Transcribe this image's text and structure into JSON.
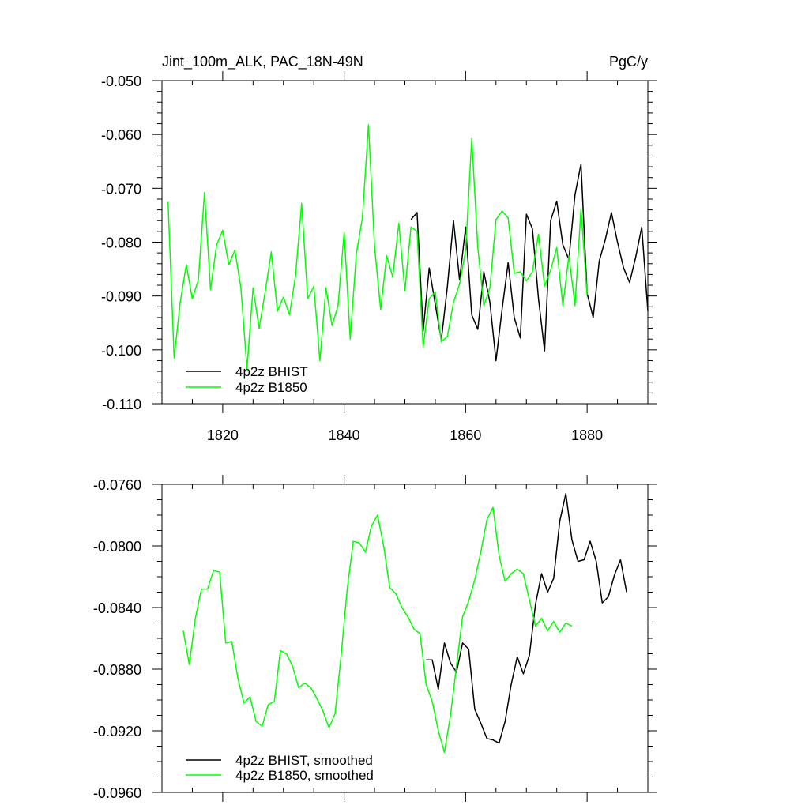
{
  "colors": {
    "bhist": "#000000",
    "b1850": "#00ff00"
  },
  "chart_data": [
    {
      "type": "line",
      "title": "Jint_100m_ALK, PAC_18N-49N",
      "units": "PgC/y",
      "xlim": [
        1810,
        1890
      ],
      "ylim": [
        -0.11,
        -0.05
      ],
      "xticks": [
        1820,
        1840,
        1860,
        1880
      ],
      "xtick_labels": [
        "1820",
        "1840",
        "1860",
        "1880"
      ],
      "yticks": [
        -0.05,
        -0.06,
        -0.07,
        -0.08,
        -0.09,
        -0.1,
        -0.11
      ],
      "ytick_labels": [
        "-0.050",
        "-0.060",
        "-0.070",
        "-0.080",
        "-0.090",
        "-0.100",
        "-0.110"
      ],
      "legend": [
        "4p2z BHIST",
        "4p2z B1850"
      ],
      "series": [
        {
          "name": "4p2z BHIST",
          "color": "#000000",
          "x_start": 1851,
          "values": [
            -0.0758,
            -0.0745,
            -0.0965,
            -0.0848,
            -0.0915,
            -0.0982,
            -0.0882,
            -0.076,
            -0.087,
            -0.0772,
            -0.0935,
            -0.0962,
            -0.0855,
            -0.0912,
            -0.102,
            -0.0925,
            -0.0838,
            -0.094,
            -0.0978,
            -0.0748,
            -0.0775,
            -0.0905,
            -0.1002,
            -0.076,
            -0.0724,
            -0.0805,
            -0.0832,
            -0.0712,
            -0.0655,
            -0.0895,
            -0.094,
            -0.0835,
            -0.0795,
            -0.0745,
            -0.08,
            -0.0848,
            -0.0875,
            -0.0828,
            -0.0772,
            -0.0928
          ]
        },
        {
          "name": "4p2z B1850",
          "color": "#00ff00",
          "x_start": 1811,
          "values": [
            -0.0725,
            -0.1015,
            -0.0912,
            -0.0842,
            -0.0905,
            -0.087,
            -0.0708,
            -0.0888,
            -0.0805,
            -0.0778,
            -0.0842,
            -0.0815,
            -0.0885,
            -0.1035,
            -0.0885,
            -0.096,
            -0.0892,
            -0.0818,
            -0.0928,
            -0.0902,
            -0.0935,
            -0.0862,
            -0.0728,
            -0.0905,
            -0.0882,
            -0.102,
            -0.0885,
            -0.0955,
            -0.0918,
            -0.0782,
            -0.098,
            -0.0822,
            -0.0755,
            -0.0582,
            -0.0808,
            -0.0925,
            -0.0825,
            -0.0865,
            -0.0765,
            -0.089,
            -0.0772,
            -0.078,
            -0.0995,
            -0.0905,
            -0.0892,
            -0.0985,
            -0.0975,
            -0.0912,
            -0.0878,
            -0.0815,
            -0.0608,
            -0.081,
            -0.0918,
            -0.0885,
            -0.0758,
            -0.0742,
            -0.0755,
            -0.0858,
            -0.0855,
            -0.0872,
            -0.0855,
            -0.0785,
            -0.0882,
            -0.0852,
            -0.081,
            -0.0918,
            -0.0825,
            -0.0918,
            -0.0738,
            -0.0898
          ]
        }
      ]
    },
    {
      "type": "line",
      "xlim": [
        1810,
        1890
      ],
      "ylim": [
        -0.096,
        -0.076
      ],
      "xticks": [
        1820,
        1840,
        1860,
        1880
      ],
      "yticks": [
        -0.076,
        -0.08,
        -0.084,
        -0.088,
        -0.092,
        -0.096
      ],
      "ytick_labels": [
        "-0.0760",
        "-0.0800",
        "-0.0840",
        "-0.0880",
        "-0.0920",
        "-0.0960"
      ],
      "legend": [
        "4p2z BHIST, smoothed",
        "4p2z B1850, smoothed"
      ],
      "series": [
        {
          "name": "4p2z BHIST, smoothed",
          "color": "#000000",
          "x_start": 1853.5,
          "values": [
            -0.0874,
            -0.0874,
            -0.0893,
            -0.0863,
            -0.0876,
            -0.0882,
            -0.0863,
            -0.0867,
            -0.0906,
            -0.0915,
            -0.0925,
            -0.0926,
            -0.0928,
            -0.0914,
            -0.089,
            -0.0872,
            -0.0883,
            -0.0871,
            -0.0838,
            -0.0818,
            -0.083,
            -0.0821,
            -0.0784,
            -0.0766,
            -0.0796,
            -0.081,
            -0.0809,
            -0.0797,
            -0.081,
            -0.0837,
            -0.0833,
            -0.0819,
            -0.0809,
            -0.083
          ]
        },
        {
          "name": "4p2z B1850, smoothed",
          "color": "#00ff00",
          "x_start": 1813.5,
          "values": [
            -0.0855,
            -0.0877,
            -0.0847,
            -0.0828,
            -0.0828,
            -0.0816,
            -0.0817,
            -0.0863,
            -0.0862,
            -0.0886,
            -0.0902,
            -0.0898,
            -0.0914,
            -0.0917,
            -0.0903,
            -0.0901,
            -0.0868,
            -0.087,
            -0.0878,
            -0.0892,
            -0.0889,
            -0.0892,
            -0.0899,
            -0.0907,
            -0.0918,
            -0.0909,
            -0.0871,
            -0.0828,
            -0.0797,
            -0.0798,
            -0.0804,
            -0.0787,
            -0.078,
            -0.08,
            -0.0827,
            -0.0831,
            -0.084,
            -0.0846,
            -0.0854,
            -0.0857,
            -0.089,
            -0.0901,
            -0.092,
            -0.0934,
            -0.091,
            -0.0878,
            -0.0846,
            -0.0836,
            -0.0822,
            -0.0804,
            -0.0783,
            -0.0775,
            -0.0806,
            -0.0823,
            -0.0818,
            -0.0815,
            -0.0818,
            -0.0835,
            -0.0852,
            -0.0847,
            -0.0855,
            -0.0849,
            -0.0856,
            -0.085,
            -0.0852
          ]
        }
      ]
    }
  ]
}
